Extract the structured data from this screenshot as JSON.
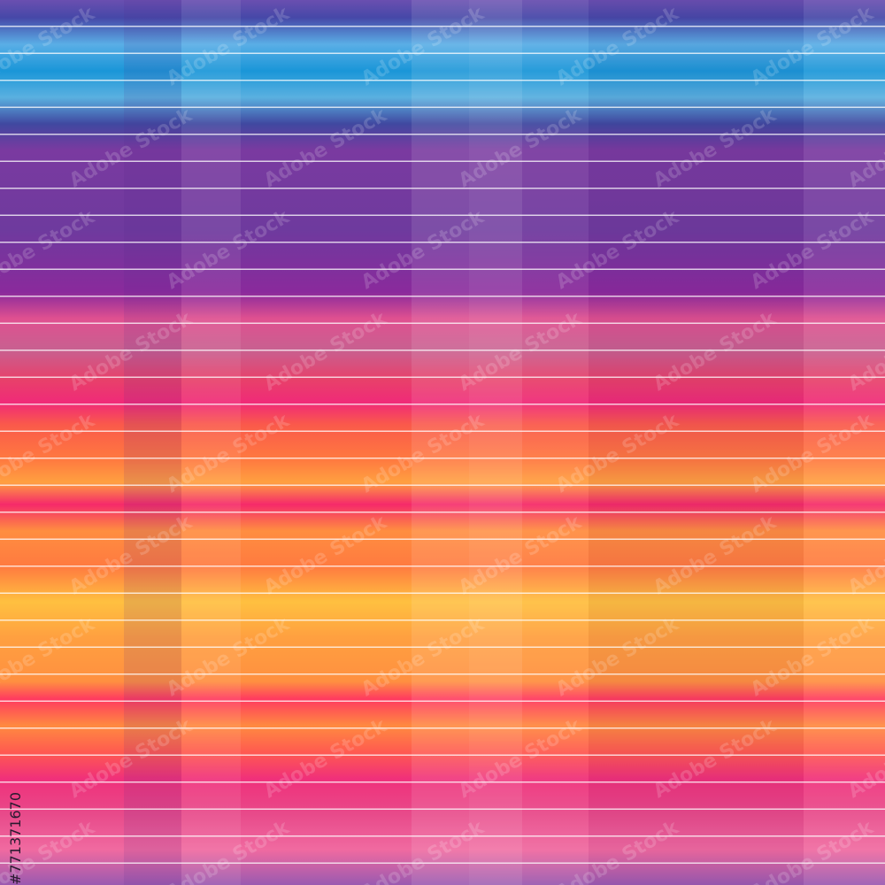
{
  "watermark": "Adobe Stock",
  "stock_id": "#771371670"
}
